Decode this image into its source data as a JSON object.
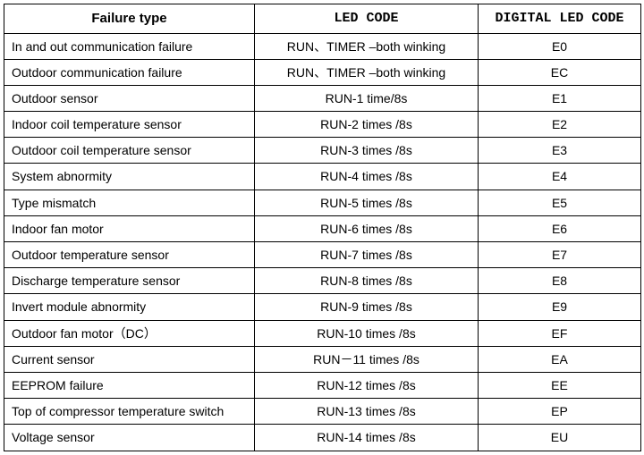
{
  "headers": {
    "failure_type": "Failure type",
    "led_code": "LED CODE",
    "digital_led_code": "DIGITAL LED CODE"
  },
  "rows": [
    {
      "failure_type": "In and out communication failure",
      "led_code": "RUN、TIMER –both winking",
      "digital_led_code": "E0"
    },
    {
      "failure_type": "Outdoor communication failure",
      "led_code": "RUN、TIMER –both winking",
      "digital_led_code": "EC"
    },
    {
      "failure_type": "Outdoor sensor",
      "led_code": "RUN-1 time/8s",
      "digital_led_code": "E1"
    },
    {
      "failure_type": "Indoor coil temperature sensor",
      "led_code": "RUN-2 times /8s",
      "digital_led_code": "E2"
    },
    {
      "failure_type": "Outdoor coil temperature sensor",
      "led_code": "RUN-3 times /8s",
      "digital_led_code": "E3"
    },
    {
      "failure_type": "System abnormity",
      "led_code": "RUN-4 times /8s",
      "digital_led_code": "E4"
    },
    {
      "failure_type": "Type mismatch",
      "led_code": "RUN-5 times /8s",
      "digital_led_code": "E5"
    },
    {
      "failure_type": "Indoor fan motor",
      "led_code": "RUN-6 times /8s",
      "digital_led_code": "E6"
    },
    {
      "failure_type": "Outdoor temperature sensor",
      "led_code": "RUN-7 times /8s",
      "digital_led_code": "E7"
    },
    {
      "failure_type": "Discharge temperature sensor",
      "led_code": "RUN-8 times /8s",
      "digital_led_code": "E8"
    },
    {
      "failure_type": "Invert module abnormity",
      "led_code": "RUN-9 times /8s",
      "digital_led_code": "E9"
    },
    {
      "failure_type": "Outdoor fan motor（DC）",
      "led_code": "RUN-10 times /8s",
      "digital_led_code": "EF"
    },
    {
      "failure_type": "Current sensor",
      "led_code": "RUN－11 times /8s",
      "digital_led_code": "EA"
    },
    {
      "failure_type": "EEPROM failure",
      "led_code": "RUN-12 times /8s",
      "digital_led_code": "EE"
    },
    {
      "failure_type": "Top of   compressor temperature switch",
      "led_code": "RUN-13 times /8s",
      "digital_led_code": "EP"
    },
    {
      "failure_type": "Voltage sensor",
      "led_code": "RUN-14 times /8s",
      "digital_led_code": "EU"
    }
  ]
}
